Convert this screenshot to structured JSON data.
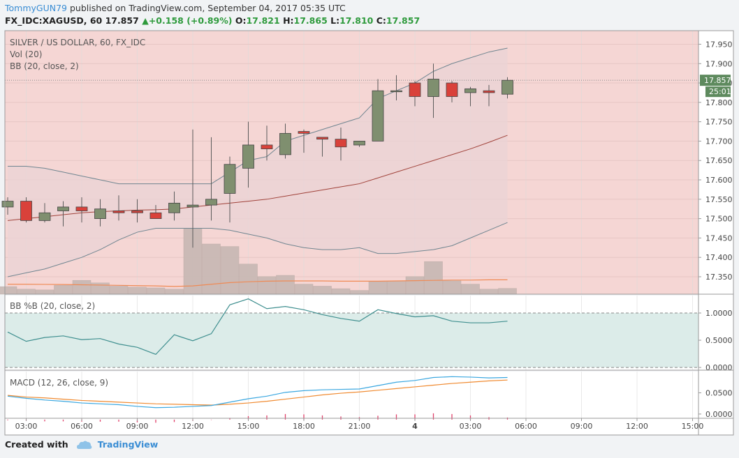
{
  "header": {
    "author": "TommyGUN79",
    "published_text": "published on TradingView.com, September 04, 2017 05:35 UTC",
    "symbol_line": "FX_IDC:XAGUSD, 60",
    "last": "17.857",
    "change": "+0.158 (+0.89%)",
    "o_label": "O:",
    "o_value": "17.821",
    "h_label": "H:",
    "h_value": "17.865",
    "l_label": "L:",
    "l_value": "17.810",
    "c_label": "C:",
    "c_value": "17.857"
  },
  "footer": {
    "created_with": "Created with",
    "brand": "TradingView"
  },
  "colors": {
    "up": "#7f8f6f",
    "down": "#d9413a",
    "main_bg": "#f5d6d4",
    "band_fill": "#ead3d5",
    "pb_bg": "#dcece9",
    "bb_line": "#6f8590",
    "bb_basis": "#a0423a",
    "volume": "#c7b8b3",
    "vol_ma": "#ef8a55",
    "pb_line": "#3f8f8f",
    "macd_line": "#3aa7e0",
    "signal_line": "#f08a30",
    "hist": "#e0406a",
    "price_tag": "#5e8a5e"
  },
  "chart_data": [
    {
      "type": "candlestick",
      "title": "SILVER / US DOLLAR, 60, FX_IDC",
      "indicators": [
        "Vol (20)",
        "BB (20, close, 2)"
      ],
      "x": [
        "02:00",
        "03:00",
        "04:00",
        "05:00",
        "06:00",
        "07:00",
        "08:00",
        "09:00",
        "10:00",
        "11:00",
        "12:00",
        "13:00",
        "14:00",
        "15:00",
        "16:00",
        "17:00",
        "18:00",
        "19:00",
        "20:00",
        "21:00",
        "22:00",
        "23:00",
        "4",
        "01:00",
        "02:00",
        "03:00",
        "04:00",
        "05:00"
      ],
      "open": [
        17.53,
        17.545,
        17.495,
        17.52,
        17.53,
        17.5,
        17.52,
        17.52,
        17.515,
        17.515,
        17.53,
        17.535,
        17.565,
        17.63,
        17.69,
        17.665,
        17.725,
        17.71,
        17.705,
        17.69,
        17.7,
        17.83,
        17.85,
        17.815,
        17.85,
        17.825,
        17.83,
        17.821
      ],
      "high": [
        17.555,
        17.555,
        17.54,
        17.545,
        17.555,
        17.55,
        17.56,
        17.55,
        17.535,
        17.57,
        17.73,
        17.71,
        17.66,
        17.75,
        17.74,
        17.745,
        17.73,
        17.71,
        17.735,
        17.7,
        17.86,
        17.87,
        17.855,
        17.9,
        17.855,
        17.84,
        17.845,
        17.865
      ],
      "high_note": "unused",
      "low": [
        17.51,
        17.49,
        17.49,
        17.48,
        17.49,
        17.48,
        17.495,
        17.49,
        17.5,
        17.495,
        17.425,
        17.495,
        17.49,
        17.58,
        17.65,
        17.655,
        17.67,
        17.66,
        17.65,
        17.685,
        17.7,
        17.805,
        17.79,
        17.76,
        17.8,
        17.79,
        17.79,
        17.81
      ],
      "close": [
        17.545,
        17.495,
        17.515,
        17.53,
        17.52,
        17.525,
        17.515,
        17.515,
        17.5,
        17.54,
        17.535,
        17.55,
        17.64,
        17.69,
        17.68,
        17.72,
        17.72,
        17.705,
        17.685,
        17.7,
        17.83,
        17.83,
        17.815,
        17.86,
        17.815,
        17.835,
        17.825,
        17.857
      ],
      "bb_upper": [
        17.635,
        17.635,
        17.63,
        17.62,
        17.61,
        17.6,
        17.59,
        17.59,
        17.59,
        17.59,
        17.59,
        17.59,
        17.62,
        17.65,
        17.66,
        17.7,
        17.715,
        17.73,
        17.745,
        17.76,
        17.81,
        17.83,
        17.85,
        17.88,
        17.9,
        17.915,
        17.93,
        17.94
      ],
      "bb_basis": [
        17.495,
        17.5,
        17.505,
        17.51,
        17.515,
        17.518,
        17.52,
        17.522,
        17.523,
        17.525,
        17.53,
        17.535,
        17.54,
        17.545,
        17.55,
        17.558,
        17.566,
        17.574,
        17.582,
        17.59,
        17.605,
        17.62,
        17.635,
        17.65,
        17.665,
        17.68,
        17.697,
        17.715
      ],
      "bb_lower": [
        17.35,
        17.36,
        17.37,
        17.385,
        17.4,
        17.42,
        17.445,
        17.465,
        17.475,
        17.475,
        17.475,
        17.475,
        17.47,
        17.46,
        17.45,
        17.435,
        17.425,
        17.42,
        17.42,
        17.425,
        17.41,
        17.41,
        17.415,
        17.42,
        17.43,
        17.45,
        17.47,
        17.49
      ],
      "volume": [
        0.3,
        0.2,
        0.17,
        0.35,
        0.55,
        0.45,
        0.32,
        0.28,
        0.25,
        0.2,
        2.6,
        2.0,
        1.9,
        1.2,
        0.7,
        0.75,
        0.4,
        0.32,
        0.22,
        0.15,
        0.5,
        0.52,
        0.7,
        1.3,
        0.53,
        0.4,
        0.2,
        0.23
      ],
      "vol_ma": [
        0.36,
        0.36,
        0.355,
        0.35,
        0.34,
        0.33,
        0.32,
        0.31,
        0.3,
        0.28,
        0.3,
        0.36,
        0.42,
        0.45,
        0.47,
        0.48,
        0.48,
        0.48,
        0.47,
        0.47,
        0.47,
        0.48,
        0.49,
        0.5,
        0.51,
        0.51,
        0.52,
        0.52
      ],
      "ylim": [
        17.305,
        17.985
      ],
      "y_ticks": [
        17.95,
        17.9,
        17.85,
        17.8,
        17.75,
        17.7,
        17.65,
        17.6,
        17.55,
        17.5,
        17.45,
        17.4,
        17.35
      ],
      "y_tick_labels": [
        "17.950",
        "17.900",
        "17.850",
        "17.800",
        "17.750",
        "17.700",
        "17.650",
        "17.600",
        "17.550",
        "17.500",
        "17.450",
        "17.400",
        "17.350"
      ],
      "last_price": 17.857,
      "last_price_label": "17.857",
      "countdown_label": "25:01",
      "x_tick_labels": [
        "03:00",
        "06:00",
        "09:00",
        "12:00",
        "15:00",
        "18:00",
        "21:00",
        "4",
        "03:00",
        "06:00",
        "09:00",
        "12:00",
        "15:00"
      ],
      "x_tick_positions": [
        1,
        4,
        7,
        10,
        13,
        16,
        19,
        22,
        25,
        28,
        31,
        34,
        37
      ]
    },
    {
      "type": "line",
      "title": "BB %B (20, close, 2)",
      "values": [
        0.65,
        0.48,
        0.55,
        0.58,
        0.51,
        0.53,
        0.43,
        0.37,
        0.24,
        0.6,
        0.49,
        0.62,
        1.15,
        1.26,
        1.08,
        1.12,
        1.06,
        0.97,
        0.9,
        0.85,
        1.06,
        0.99,
        0.93,
        0.95,
        0.85,
        0.82,
        0.82,
        0.85
      ],
      "ylim": [
        -0.05,
        1.32
      ],
      "band_upper": 1.0,
      "band_lower": 0.0,
      "y_ticks": [
        1.0,
        0.5,
        0.0
      ],
      "y_tick_labels": [
        "1.0000",
        "0.5000",
        "0.0000"
      ]
    },
    {
      "type": "line",
      "title": "MACD (12, 26, close, 9)",
      "macd": [
        0.042,
        0.037,
        0.033,
        0.03,
        0.026,
        0.024,
        0.022,
        0.018,
        0.015,
        0.016,
        0.018,
        0.02,
        0.028,
        0.036,
        0.042,
        0.051,
        0.055,
        0.057,
        0.058,
        0.059,
        0.067,
        0.075,
        0.079,
        0.086,
        0.088,
        0.087,
        0.085,
        0.086
      ],
      "signal": [
        0.044,
        0.04,
        0.038,
        0.035,
        0.032,
        0.03,
        0.028,
        0.026,
        0.024,
        0.023,
        0.022,
        0.021,
        0.023,
        0.026,
        0.03,
        0.035,
        0.04,
        0.045,
        0.049,
        0.052,
        0.056,
        0.06,
        0.064,
        0.068,
        0.072,
        0.075,
        0.078,
        0.08
      ],
      "histogram": [
        -0.002,
        -0.003,
        -0.005,
        -0.005,
        -0.006,
        -0.006,
        -0.006,
        -0.008,
        -0.009,
        -0.007,
        -0.004,
        -0.001,
        0.005,
        0.01,
        0.012,
        0.016,
        0.015,
        0.012,
        0.009,
        0.007,
        0.011,
        0.015,
        0.015,
        0.018,
        0.016,
        0.012,
        0.007,
        0.006
      ],
      "ylim": [
        -0.01,
        0.1
      ],
      "y_ticks": [
        0.05,
        0.0
      ],
      "y_tick_labels": [
        "0.0500",
        "0.0000"
      ]
    }
  ]
}
